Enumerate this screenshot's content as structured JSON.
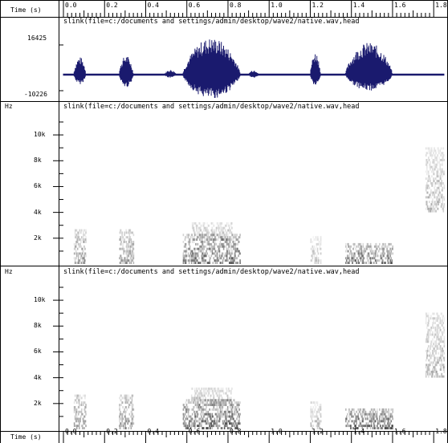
{
  "time_axis": {
    "label": "Time (s)",
    "ticks": [
      "0.0",
      "0.2",
      "0.4",
      "0.6",
      "0.8",
      "1.0",
      "1.2",
      "1.4",
      "1.6",
      "1.8"
    ]
  },
  "waveform": {
    "title": "slink(file=c:/documents and settings/admin/desktop/wave2/native.wav,head",
    "y_max_label": "16425",
    "y_min_label": "-10226",
    "color": "#1a1a6e"
  },
  "spectrogram1": {
    "title": "slink(file=c:/documents and settings/admin/desktop/wave2/native.wav,head",
    "unit_label": "Hz",
    "y_ticks": [
      "10k",
      "8k",
      "6k",
      "4k",
      "2k"
    ]
  },
  "spectrogram2": {
    "title": "slink(file=c:/documents and settings/admin/desktop/wave2/native.wav,head",
    "unit_label": "Hz",
    "y_ticks": [
      "10k",
      "8k",
      "6k",
      "4k",
      "2k"
    ]
  }
}
